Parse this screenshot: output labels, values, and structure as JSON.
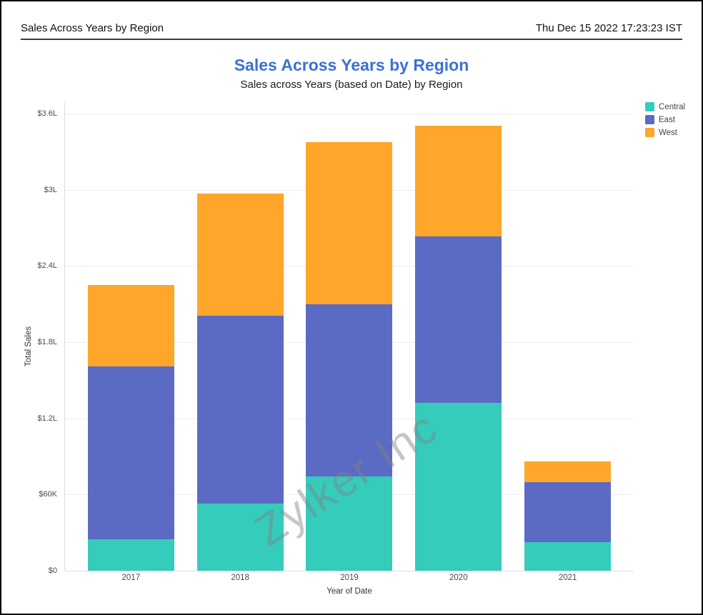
{
  "window": {
    "header_title": "Sales Across Years by Region",
    "header_timestamp": "Thu Dec 15 2022 17:23:23 IST"
  },
  "chart": {
    "title": "Sales Across Years by Region",
    "subtitle": "Sales across Years (based on Date) by Region",
    "watermark": "Zylker Inc",
    "title_color": "#3B70D8"
  },
  "chart_data": {
    "type": "bar",
    "stacked": true,
    "title": "Sales Across Years by Region",
    "subtitle": "Sales across Years (based on Date) by Region",
    "categories": [
      "2017",
      "2018",
      "2019",
      "2020",
      "2021"
    ],
    "series": [
      {
        "name": "Central",
        "color": "#35CCBC",
        "values": [
          25000,
          53000,
          74500,
          132000,
          22500
        ]
      },
      {
        "name": "East",
        "color": "#5B6AC3",
        "values": [
          136000,
          148000,
          135500,
          131500,
          47000
        ]
      },
      {
        "name": "West",
        "color": "#FFA62B",
        "values": [
          64000,
          96000,
          127500,
          87000,
          16500
        ]
      }
    ],
    "xlabel": "Year of Date",
    "ylabel": "Total Sales",
    "ylim": [
      0,
      360000
    ],
    "ytick_step": 60000,
    "ytick_labels": [
      "$0",
      "$60K",
      "$1.2L",
      "$1.8L",
      "$2.4L",
      "$3L",
      "$3.6L"
    ],
    "legend_position": "top-right",
    "grid": true
  }
}
